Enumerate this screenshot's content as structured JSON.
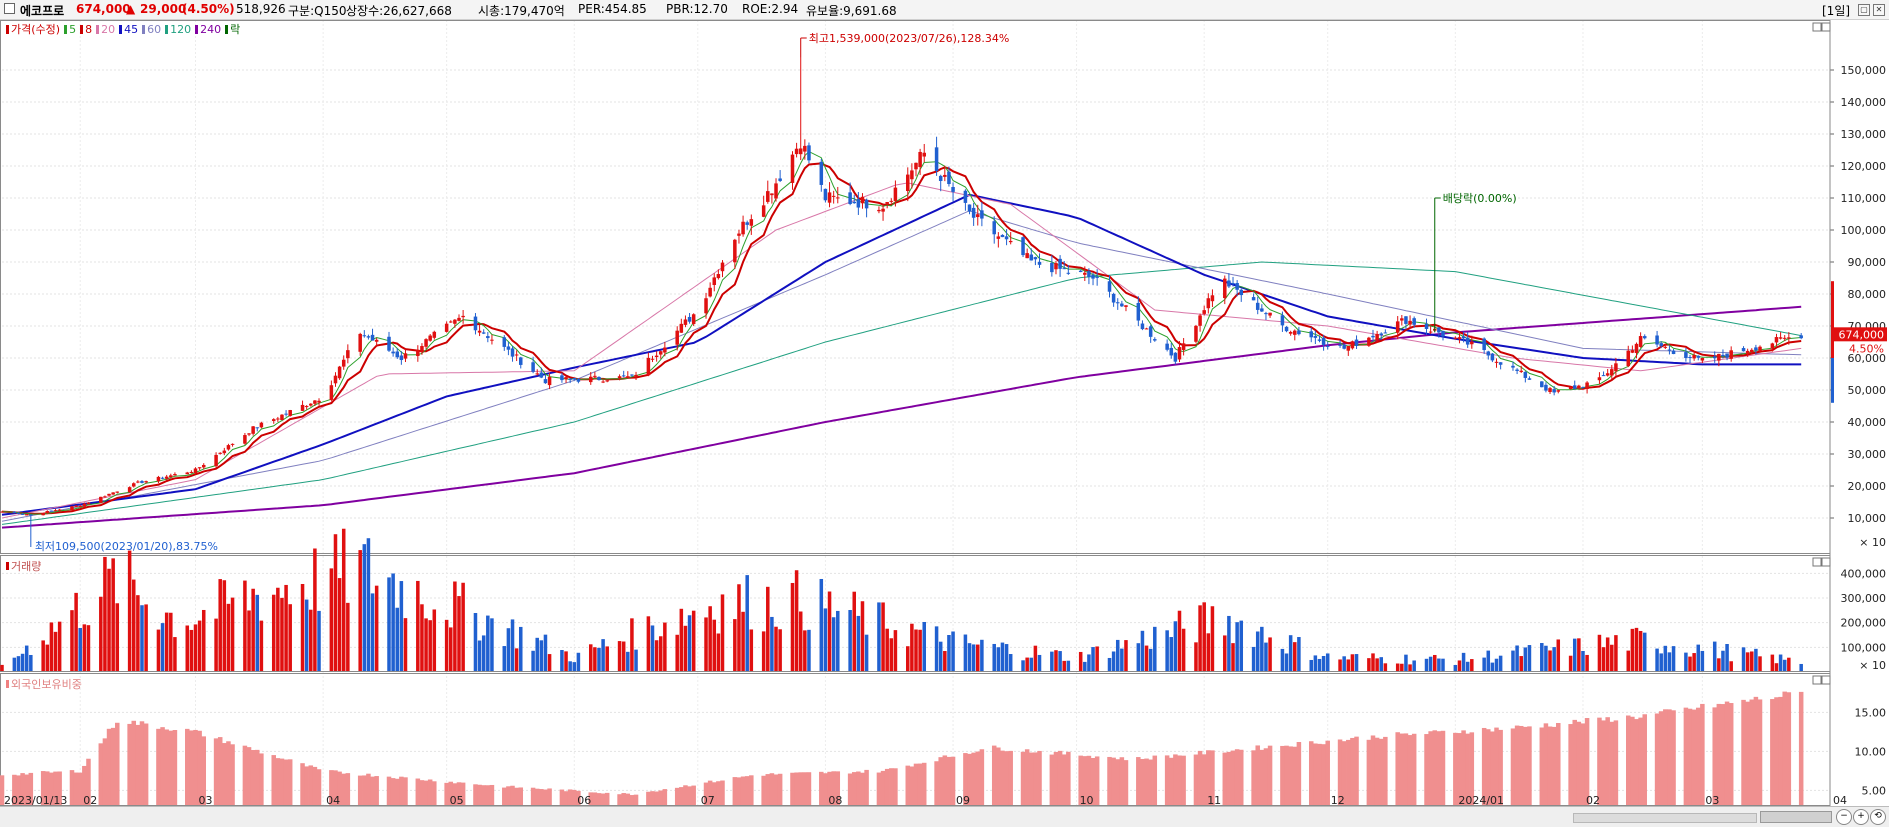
{
  "header": {
    "name": "에코프로",
    "price": "674,000",
    "change_arrow": "▲",
    "change": "29,000",
    "change_pct": "(4.50%)",
    "volume": "518,926",
    "category": "구분:Q150",
    "shares": "상장수:26,627,668",
    "market_cap": "시총:179,470억",
    "per": "PER:454.85",
    "pbr": "PBR:12.70",
    "roe": "ROE:2.94",
    "retention": "유보율:9,691.68",
    "period": "[1일]"
  },
  "legend": [
    {
      "label": "가격(수정)",
      "color": "#cc0000"
    },
    {
      "label": "5",
      "color": "#2ca02c"
    },
    {
      "label": "8",
      "color": "#cc0000"
    },
    {
      "label": "20",
      "color": "#d877a8"
    },
    {
      "label": "45",
      "color": "#1010c0"
    },
    {
      "label": "60",
      "color": "#8080c0"
    },
    {
      "label": "120",
      "color": "#20a080"
    },
    {
      "label": "240",
      "color": "#8000a0"
    },
    {
      "label": "락",
      "color": "#006600"
    }
  ],
  "panels": {
    "volume_title": "거래량",
    "foreign_title": "외국인보유비중"
  },
  "annotations": {
    "high": "최고1,539,000(2023/07/26),128.34%",
    "low": "최저109,500(2023/01/20),83.75%",
    "dividend": "배당락(0.00%)",
    "last_price": "674,000",
    "last_pct": "4.50%"
  },
  "colors": {
    "up": "#e01010",
    "down": "#2060d0",
    "grid": "#d0d0d0"
  },
  "chart_data": [
    {
      "type": "candlestick",
      "title": "에코프로",
      "unit_note": "× 10",
      "ylim": [
        0,
        160000
      ],
      "y_ticks": [
        "150,000",
        "140,000",
        "130,000",
        "120,000",
        "110,000",
        "100,000",
        "90,000",
        "80,000",
        "70,000",
        "60,000",
        "50,000",
        "40,000",
        "30,000",
        "20,000",
        "10,000"
      ],
      "x_ticks": [
        "2023/01/13",
        "02",
        "03",
        "04",
        "05",
        "06",
        "07",
        "08",
        "09",
        "10",
        "11",
        "12",
        "2024/01",
        "02",
        "03",
        "04"
      ],
      "close_keypoints": [
        {
          "x": "2023/01/13",
          "y": 12000
        },
        {
          "x": "2023/01/20",
          "y": 11000
        },
        {
          "x": "2023/02/01",
          "y": 14000
        },
        {
          "x": "2023/02/15",
          "y": 21000
        },
        {
          "x": "2023/03/01",
          "y": 25000
        },
        {
          "x": "2023/03/15",
          "y": 38000
        },
        {
          "x": "2023/04/01",
          "y": 48000
        },
        {
          "x": "2023/04/10",
          "y": 68000
        },
        {
          "x": "2023/04/20",
          "y": 60000
        },
        {
          "x": "2023/05/05",
          "y": 73000
        },
        {
          "x": "2023/05/25",
          "y": 53000
        },
        {
          "x": "2023/06/15",
          "y": 54000
        },
        {
          "x": "2023/07/01",
          "y": 75000
        },
        {
          "x": "2023/07/10",
          "y": 98000
        },
        {
          "x": "2023/07/20",
          "y": 115000
        },
        {
          "x": "2023/07/26",
          "y": 128000
        },
        {
          "x": "2023/08/01",
          "y": 110000
        },
        {
          "x": "2023/08/15",
          "y": 108000
        },
        {
          "x": "2023/08/25",
          "y": 124000
        },
        {
          "x": "2023/09/05",
          "y": 105000
        },
        {
          "x": "2023/09/20",
          "y": 90000
        },
        {
          "x": "2023/10/05",
          "y": 85000
        },
        {
          "x": "2023/10/25",
          "y": 60000
        },
        {
          "x": "2023/11/05",
          "y": 85000
        },
        {
          "x": "2023/11/20",
          "y": 70000
        },
        {
          "x": "2023/12/05",
          "y": 63000
        },
        {
          "x": "2023/12/20",
          "y": 72000
        },
        {
          "x": "2024/01/05",
          "y": 64000
        },
        {
          "x": "2024/01/25",
          "y": 49000
        },
        {
          "x": "2024/02/05",
          "y": 53000
        },
        {
          "x": "2024/02/15",
          "y": 66000
        },
        {
          "x": "2024/03/01",
          "y": 59000
        },
        {
          "x": "2024/03/25",
          "y": 67400
        }
      ],
      "ma_keypoints": {
        "ma45": [
          {
            "x": "2023/01/13",
            "y": 11000
          },
          {
            "x": "2023/03/01",
            "y": 19000
          },
          {
            "x": "2023/04/01",
            "y": 33000
          },
          {
            "x": "2023/05/01",
            "y": 48000
          },
          {
            "x": "2023/06/01",
            "y": 57000
          },
          {
            "x": "2023/07/01",
            "y": 65000
          },
          {
            "x": "2023/08/01",
            "y": 90000
          },
          {
            "x": "2023/09/05",
            "y": 111000
          },
          {
            "x": "2023/10/01",
            "y": 104000
          },
          {
            "x": "2023/11/01",
            "y": 86000
          },
          {
            "x": "2023/12/01",
            "y": 73000
          },
          {
            "x": "2024/01/01",
            "y": 66000
          },
          {
            "x": "2024/02/01",
            "y": 60000
          },
          {
            "x": "2024/03/01",
            "y": 58000
          },
          {
            "x": "2024/03/25",
            "y": 58000
          }
        ],
        "ma240": [
          {
            "x": "2023/01/13",
            "y": 7000
          },
          {
            "x": "2023/04/01",
            "y": 14000
          },
          {
            "x": "2023/06/01",
            "y": 24000
          },
          {
            "x": "2023/08/01",
            "y": 40000
          },
          {
            "x": "2023/10/01",
            "y": 54000
          },
          {
            "x": "2023/12/01",
            "y": 64000
          },
          {
            "x": "2024/01/01",
            "y": 68000
          },
          {
            "x": "2024/03/25",
            "y": 76000
          }
        ],
        "ma120": [
          {
            "x": "2023/01/13",
            "y": 8000
          },
          {
            "x": "2023/04/01",
            "y": 22000
          },
          {
            "x": "2023/06/01",
            "y": 40000
          },
          {
            "x": "2023/08/01",
            "y": 65000
          },
          {
            "x": "2023/10/01",
            "y": 85000
          },
          {
            "x": "2023/11/15",
            "y": 90000
          },
          {
            "x": "2024/01/01",
            "y": 87000
          },
          {
            "x": "2024/03/25",
            "y": 67000
          }
        ],
        "ma60": [
          {
            "x": "2023/01/13",
            "y": 9000
          },
          {
            "x": "2023/04/01",
            "y": 28000
          },
          {
            "x": "2023/06/01",
            "y": 53000
          },
          {
            "x": "2023/08/01",
            "y": 86000
          },
          {
            "x": "2023/09/05",
            "y": 106000
          },
          {
            "x": "2023/10/01",
            "y": 96000
          },
          {
            "x": "2023/12/01",
            "y": 80000
          },
          {
            "x": "2024/02/01",
            "y": 63000
          },
          {
            "x": "2024/03/25",
            "y": 61000
          }
        ],
        "ma20": [
          {
            "x": "2023/01/13",
            "y": 10000
          },
          {
            "x": "2023/03/01",
            "y": 22000
          },
          {
            "x": "2023/04/15",
            "y": 55000
          },
          {
            "x": "2023/06/01",
            "y": 56000
          },
          {
            "x": "2023/07/20",
            "y": 100000
          },
          {
            "x": "2023/08/20",
            "y": 115000
          },
          {
            "x": "2023/09/15",
            "y": 108000
          },
          {
            "x": "2023/10/20",
            "y": 75000
          },
          {
            "x": "2023/12/01",
            "y": 70000
          },
          {
            "x": "2024/01/15",
            "y": 60000
          },
          {
            "x": "2024/02/15",
            "y": 56000
          },
          {
            "x": "2024/03/25",
            "y": 63000
          }
        ]
      }
    },
    {
      "type": "bar",
      "title": "거래량",
      "unit_note": "× 10",
      "ylim": [
        0,
        450000
      ],
      "y_ticks": [
        "400,000",
        "300,000",
        "200,000",
        "100,000"
      ],
      "volume_keypoints": [
        {
          "x": "2023/01/13",
          "y": 20000
        },
        {
          "x": "2023/02/10",
          "y": 380000
        },
        {
          "x": "2023/02/25",
          "y": 200000
        },
        {
          "x": "2023/03/15",
          "y": 310000
        },
        {
          "x": "2023/04/10",
          "y": 420000
        },
        {
          "x": "2023/05/01",
          "y": 280000
        },
        {
          "x": "2023/06/01",
          "y": 60000
        },
        {
          "x": "2023/07/05",
          "y": 280000
        },
        {
          "x": "2023/07/26",
          "y": 290000
        },
        {
          "x": "2023/09/01",
          "y": 120000
        },
        {
          "x": "2023/10/01",
          "y": 60000
        },
        {
          "x": "2023/11/05",
          "y": 220000
        },
        {
          "x": "2023/12/01",
          "y": 60000
        },
        {
          "x": "2024/01/01",
          "y": 50000
        },
        {
          "x": "2024/02/15",
          "y": 130000
        },
        {
          "x": "2024/03/25",
          "y": 40000
        }
      ]
    },
    {
      "type": "bar",
      "title": "외국인보유비중",
      "ylim": [
        3,
        18.5
      ],
      "y_ticks": [
        "15.00",
        "10.00",
        "5.00"
      ],
      "foreign_keypoints": [
        {
          "x": "2023/01/13",
          "y": 7
        },
        {
          "x": "2023/02/01",
          "y": 7.5
        },
        {
          "x": "2023/02/10",
          "y": 14
        },
        {
          "x": "2023/03/01",
          "y": 12.5
        },
        {
          "x": "2023/04/01",
          "y": 7.5
        },
        {
          "x": "2023/05/15",
          "y": 5.5
        },
        {
          "x": "2023/06/15",
          "y": 4.5
        },
        {
          "x": "2023/07/15",
          "y": 7
        },
        {
          "x": "2023/08/15",
          "y": 7.5
        },
        {
          "x": "2023/09/10",
          "y": 10.5
        },
        {
          "x": "2023/10/15",
          "y": 9
        },
        {
          "x": "2023/11/15",
          "y": 10.5
        },
        {
          "x": "2023/12/15",
          "y": 12
        },
        {
          "x": "2024/01/15",
          "y": 13
        },
        {
          "x": "2024/02/15",
          "y": 14.5
        },
        {
          "x": "2024/03/25",
          "y": 17.5
        }
      ]
    }
  ]
}
